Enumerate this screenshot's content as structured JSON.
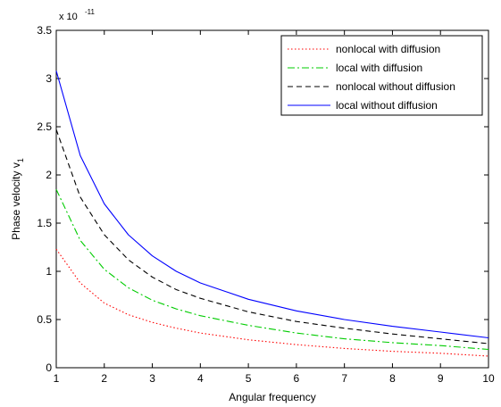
{
  "chart_data": {
    "type": "line",
    "xlabel": "Angular frequency",
    "ylabel": "Phase velocity v",
    "ylabel_subscript": "1",
    "y_exponent_label": "x 10",
    "y_exponent_power": "-11",
    "xlim": [
      1,
      10
    ],
    "ylim": [
      0,
      3.5
    ],
    "xticks": [
      1,
      2,
      3,
      4,
      5,
      6,
      7,
      8,
      9,
      10
    ],
    "yticks": [
      0,
      0.5,
      1,
      1.5,
      2,
      2.5,
      3,
      3.5
    ],
    "ytick_labels": [
      "0",
      "0.5",
      "1",
      "1.5",
      "2",
      "2.5",
      "3",
      "3.5"
    ],
    "grid": false,
    "legend_position": "top-right",
    "x": [
      1,
      1.5,
      2,
      2.5,
      3,
      3.5,
      4,
      5,
      6,
      7,
      8,
      9,
      10
    ],
    "series": [
      {
        "name": "nonlocal with diffusion",
        "style": "dotted",
        "color": "#ff0000",
        "values": [
          1.23,
          0.88,
          0.67,
          0.55,
          0.47,
          0.41,
          0.36,
          0.29,
          0.24,
          0.2,
          0.17,
          0.15,
          0.12
        ]
      },
      {
        "name": "local with diffusion",
        "style": "dashdot",
        "color": "#00cc00",
        "values": [
          1.85,
          1.32,
          1.02,
          0.83,
          0.7,
          0.61,
          0.54,
          0.44,
          0.36,
          0.3,
          0.26,
          0.23,
          0.19
        ]
      },
      {
        "name": "nonlocal without diffusion",
        "style": "dashed",
        "color": "#000000",
        "values": [
          2.47,
          1.77,
          1.38,
          1.12,
          0.94,
          0.81,
          0.72,
          0.58,
          0.48,
          0.41,
          0.35,
          0.3,
          0.25
        ]
      },
      {
        "name": "local without diffusion",
        "style": "solid",
        "color": "#0000ff",
        "values": [
          3.08,
          2.2,
          1.7,
          1.38,
          1.16,
          1.0,
          0.88,
          0.71,
          0.59,
          0.5,
          0.43,
          0.37,
          0.31
        ]
      }
    ]
  }
}
